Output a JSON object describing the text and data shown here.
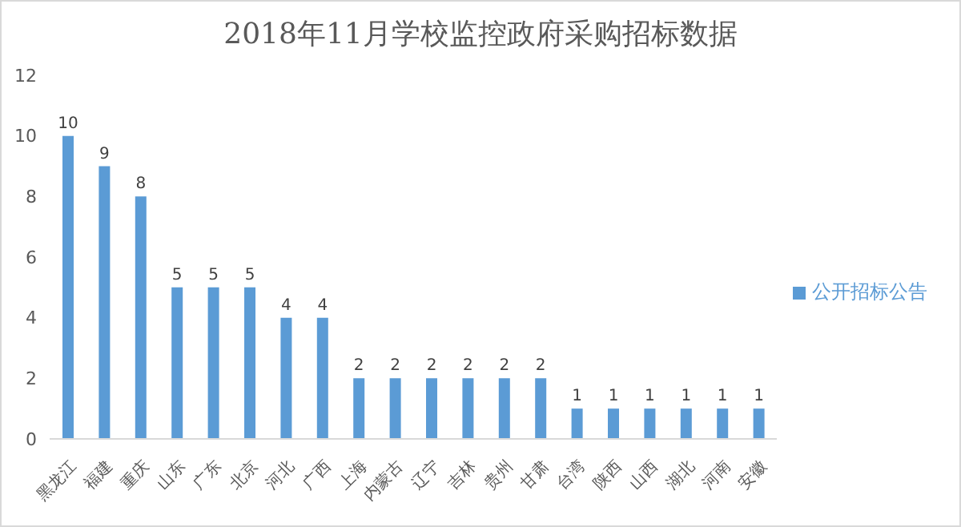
{
  "chart_data": {
    "type": "bar",
    "title": "2018年11月学校监控政府采购招标数据",
    "categories": [
      "黑龙江",
      "福建",
      "重庆",
      "山东",
      "广东",
      "北京",
      "河北",
      "广西",
      "上海",
      "内蒙古",
      "辽宁",
      "吉林",
      "贵州",
      "甘肃",
      "台湾",
      "陕西",
      "山西",
      "湖北",
      "河南",
      "安徽"
    ],
    "series": [
      {
        "name": "公开招标公告",
        "color": "#5b9bd5",
        "values": [
          10,
          9,
          8,
          5,
          5,
          5,
          4,
          4,
          2,
          2,
          2,
          2,
          2,
          2,
          1,
          1,
          1,
          1,
          1,
          1
        ]
      }
    ],
    "ylim": [
      0,
      12
    ],
    "yticks": [
      0,
      2,
      4,
      6,
      8,
      10,
      12
    ],
    "data_labels": true,
    "legend": "right",
    "grid": false
  }
}
